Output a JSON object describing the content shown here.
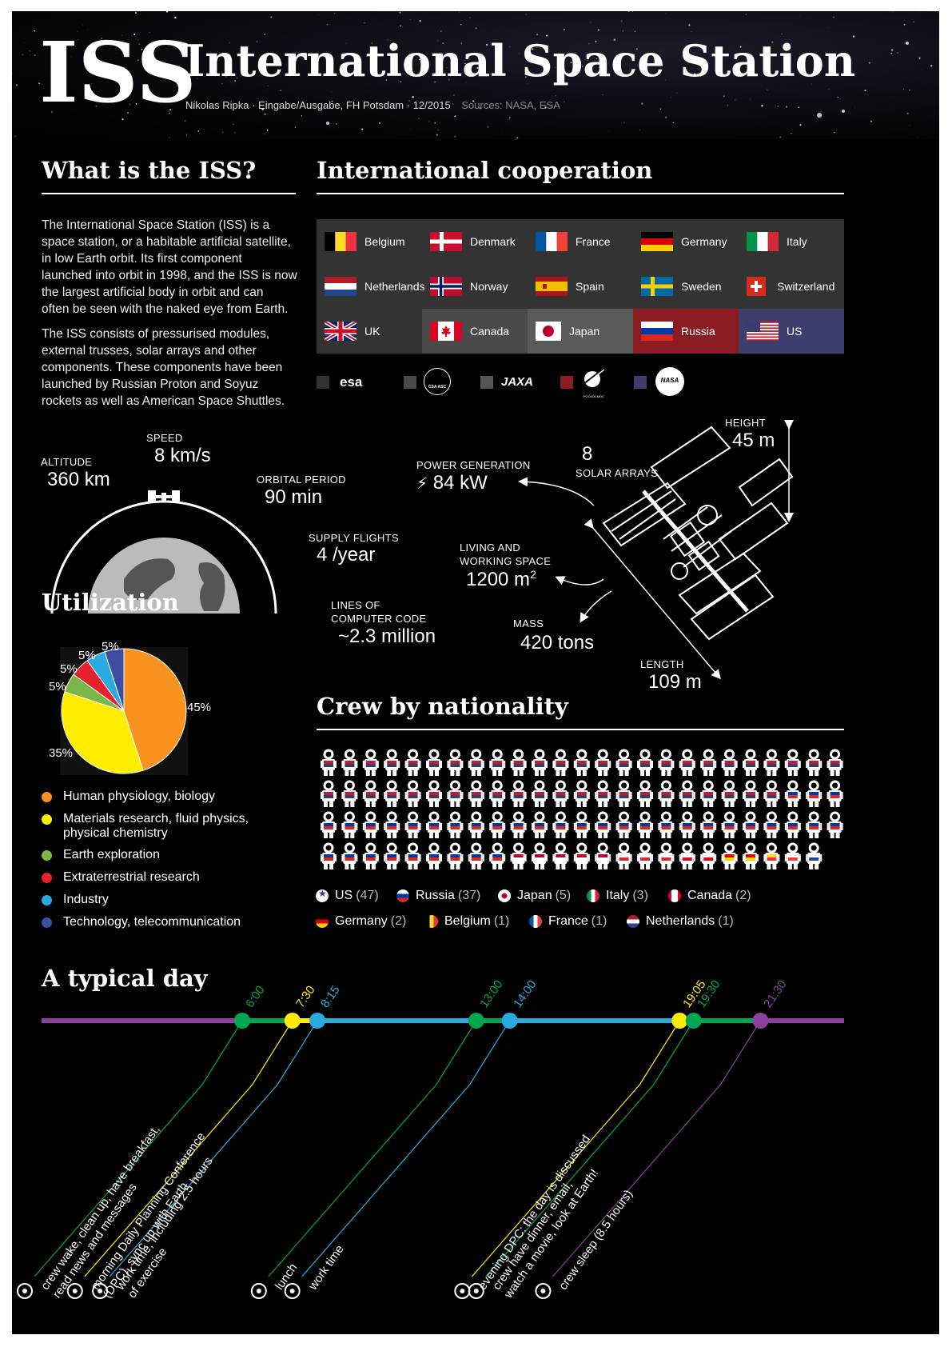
{
  "header": {
    "acronym": "ISS",
    "title": "International Space Station",
    "credit": "Nikolas Ripka · Eingabe/Ausgabe, FH Potsdam · 12/2015",
    "sources": "Sources: NASA, ESA"
  },
  "what": {
    "heading": "What is the ISS?",
    "p1": [
      "The International Space Station (ISS) is a",
      "space station, or a habitable artificial satellite,",
      "in low Earth orbit. Its first component",
      "launched into orbit in 1998, and the ISS is now",
      "the largest artificial body in orbit and can",
      "often be seen with the naked eye from Earth."
    ],
    "p2": [
      "The ISS consists of pressurised modules,",
      "external trusses, solar arrays and other",
      "components. These components have been",
      "launched by Russian Proton and Soyuz",
      "rockets as well as American Space Shuttles."
    ]
  },
  "cooperation": {
    "heading": "International cooperation",
    "countries": [
      [
        "Belgium",
        "Denmark",
        "France",
        "Germany",
        "Italy"
      ],
      [
        "Netherlands",
        "Norway",
        "Spain",
        "Sweden",
        "Switzerland"
      ],
      [
        "UK",
        "Canada",
        "Japan",
        "Russia",
        "US"
      ]
    ],
    "colors": {
      "esa": "#333333",
      "canada": "#4a4a4a",
      "japan": "#555555",
      "russia": "#8b1c22",
      "us": "#3d3d6e"
    },
    "agencies": [
      "esa",
      "CSA ASC",
      "JAXA",
      "РОСКОСМОС",
      "NASA"
    ]
  },
  "orbit": {
    "altitude_label": "ALTITUDE",
    "altitude": "360 km",
    "speed_label": "SPEED",
    "speed": "8 km/s",
    "period_label": "ORBITAL PERIOD",
    "period": "90 min",
    "supply_label": "SUPPLY FLIGHTS",
    "supply": "4 /year",
    "code_label1": "LINES OF",
    "code_label2": "COMPUTER CODE",
    "code": "~2.3 million"
  },
  "station": {
    "power_label": "POWER GENERATION",
    "power": "84 kW",
    "arrays_count": "8",
    "arrays_label": "SOLAR ARRAYS",
    "height_label": "HEIGHT",
    "height": "45 m",
    "living_label1": "LIVING AND",
    "living_label2": "WORKING SPACE",
    "living": "1200 m",
    "living_sup": "2",
    "mass_label": "MASS",
    "mass": "420 tons",
    "length_label": "LENGTH",
    "length": "109 m"
  },
  "utilization": {
    "heading": "Utilization",
    "legend": [
      {
        "label": "Human physiology, biology",
        "color": "#f7931e"
      },
      {
        "label": "Materials research, fluid physics,",
        "label2": "physical chemistry",
        "color": "#ffee00"
      },
      {
        "label": "Earth exploration",
        "color": "#7ab648"
      },
      {
        "label": "Extraterrestrial research",
        "color": "#e8212e"
      },
      {
        "label": "Industry",
        "color": "#29abe2"
      },
      {
        "label": "Technology, telecommunication",
        "color": "#3b4ea1"
      }
    ],
    "pct_labels": [
      "45%",
      "35%",
      "5%",
      "5%",
      "5%",
      "5%"
    ]
  },
  "chart_data": {
    "type": "pie",
    "categories": [
      "Human physiology, biology",
      "Materials research, fluid physics, physical chemistry",
      "Earth exploration",
      "Extraterrestrial research",
      "Industry",
      "Technology, telecommunication"
    ],
    "values": [
      45,
      35,
      5,
      5,
      5,
      5
    ],
    "colors": [
      "#f7931e",
      "#ffee00",
      "#7ab648",
      "#e8212e",
      "#29abe2",
      "#3b4ea1"
    ]
  },
  "crew": {
    "heading": "Crew by nationality",
    "counts": [
      {
        "name": "US",
        "count": "(47)",
        "n": 47
      },
      {
        "name": "Russia",
        "count": "(37)",
        "n": 37
      },
      {
        "name": "Japan",
        "count": "(5)",
        "n": 5
      },
      {
        "name": "Italy",
        "count": "(3)",
        "n": 3
      },
      {
        "name": "Canada",
        "count": "(2)",
        "n": 2
      },
      {
        "name": "Germany",
        "count": "(2)",
        "n": 2
      },
      {
        "name": "Belgium",
        "count": "(1)",
        "n": 1
      },
      {
        "name": "France",
        "count": "(1)",
        "n": 1
      },
      {
        "name": "Netherlands",
        "count": "(1)",
        "n": 1
      }
    ]
  },
  "day": {
    "heading": "A typical day",
    "events": [
      {
        "time": "6:00",
        "color": "#00a651",
        "text1": "crew wake, clean up, have breakfast,",
        "text2": "read news and messages"
      },
      {
        "time": "7:30",
        "color": "#ffee00",
        "text1": "morning Daily Planning Conference",
        "text2": "(DPC), sync up with Earth"
      },
      {
        "time": "8:15",
        "color": "#29abe2",
        "text1": "work time, including 2.5 hours",
        "text2": "of exercise"
      },
      {
        "time": "13:00",
        "color": "#00a651",
        "text1": "lunch",
        "text2": ""
      },
      {
        "time": "14:00",
        "color": "#29abe2",
        "text1": "work time",
        "text2": ""
      },
      {
        "time": "19:05",
        "color": "#ffee00",
        "text1": "evening DPC: the day is discussed",
        "text2": ""
      },
      {
        "time": "19:30",
        "color": "#00a651",
        "text1": "crew have dinner, email,",
        "text2": "watch a movie, look at Earth!"
      },
      {
        "time": "21:30",
        "color": "#8e3fa0",
        "text1": "crew sleep (8.5 hours)",
        "text2": ""
      }
    ]
  }
}
